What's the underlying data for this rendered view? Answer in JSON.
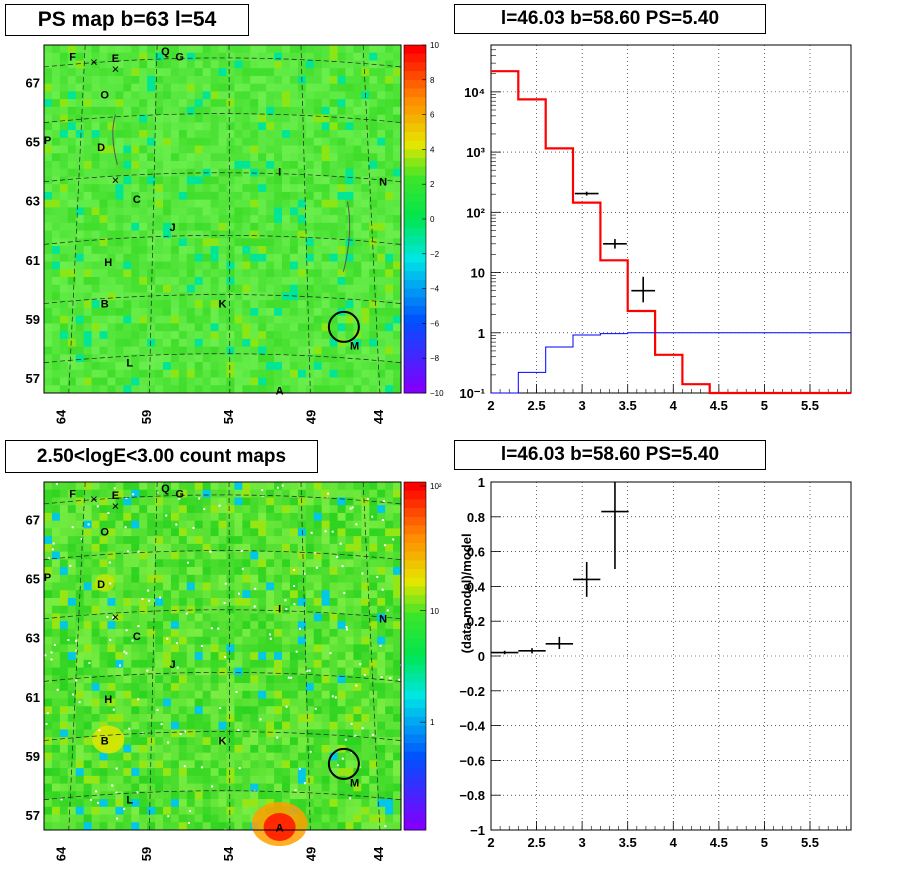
{
  "titles": {
    "map_top": "PS map b=63 l=54",
    "spec_top": "l=46.03 b=58.60 PS=5.40",
    "map_bottom": "2.50<logE<3.00 count maps",
    "spec_bottom": "l=46.03 b=58.60 PS=5.40"
  },
  "maps": {
    "x_ticks": [
      "64",
      "59",
      "54",
      "49",
      "44"
    ],
    "y_ticks": [
      "67",
      "65",
      "63",
      "61",
      "59",
      "57"
    ],
    "source_labels": [
      "F",
      "E",
      "Q",
      "G",
      "O",
      "P",
      "D",
      "I",
      "N",
      "C",
      "J",
      "H",
      "B",
      "K",
      "L",
      "M",
      "A"
    ],
    "top_palette_ticks": [
      "10",
      "8",
      "6",
      "4",
      "2",
      "0",
      "−2",
      "−4",
      "−6",
      "−8",
      "−10"
    ],
    "bottom_palette_ticks": [
      "10²",
      "10",
      "1"
    ],
    "colors": {
      "background": "#33e633",
      "circle": "#000000"
    }
  },
  "chart_data": [
    {
      "type": "line",
      "title": "l=46.03 b=58.60 PS=5.40",
      "log_y": true,
      "xlim": [
        2.0,
        5.95
      ],
      "ylim": [
        0.1,
        60000
      ],
      "x_ticks": [
        "2",
        "2.5",
        "3",
        "3.5",
        "4",
        "4.5",
        "5",
        "5.5"
      ],
      "y_ticks": [
        "10⁻¹",
        "1",
        "10",
        "10²",
        "10³",
        "10⁴"
      ],
      "grid": true,
      "series": [
        {
          "kind": "step",
          "color": "#ff0000",
          "edges": [
            2.0,
            2.3,
            2.6,
            2.9,
            3.2,
            3.5,
            3.8,
            4.1,
            4.4,
            5.95
          ],
          "values": [
            22000,
            7500,
            1150,
            145,
            16,
            2.3,
            0.43,
            0.14,
            0.09
          ]
        },
        {
          "kind": "step",
          "color": "#0000ff",
          "edges": [
            2.0,
            2.3,
            2.6,
            2.9,
            3.2,
            3.5,
            5.95
          ],
          "values": [
            0.09,
            0.22,
            0.58,
            0.92,
            0.97,
            1.0
          ]
        },
        {
          "kind": "errorbar",
          "color": "#000000",
          "points": [
            {
              "x": 3.05,
              "xerr": 0.13,
              "y": 205,
              "ylo": 190,
              "yhi": 220
            },
            {
              "x": 3.36,
              "xerr": 0.13,
              "y": 30,
              "ylo": 25,
              "yhi": 36
            },
            {
              "x": 3.67,
              "xerr": 0.13,
              "y": 5.0,
              "ylo": 3.2,
              "yhi": 8.5
            }
          ]
        }
      ]
    },
    {
      "type": "scatter",
      "title": "l=46.03 b=58.60 PS=5.40",
      "ylabel": "(data-model)/model",
      "xlim": [
        2.0,
        5.95
      ],
      "ylim": [
        -1,
        1
      ],
      "x_ticks": [
        "2",
        "2.5",
        "3",
        "3.5",
        "4",
        "4.5",
        "5",
        "5.5"
      ],
      "y_ticks": [
        "−1",
        "−0.8",
        "−0.6",
        "−0.4",
        "−0.2",
        "0",
        "0.2",
        "0.4",
        "0.6",
        "0.8",
        "1"
      ],
      "grid": true,
      "series": [
        {
          "kind": "errorbar",
          "color": "#000000",
          "points": [
            {
              "x": 2.15,
              "xerr": 0.15,
              "y": 0.02,
              "ylo": 0.01,
              "yhi": 0.03
            },
            {
              "x": 2.45,
              "xerr": 0.15,
              "y": 0.03,
              "ylo": 0.015,
              "yhi": 0.045
            },
            {
              "x": 2.75,
              "xerr": 0.15,
              "y": 0.07,
              "ylo": 0.04,
              "yhi": 0.11
            },
            {
              "x": 3.05,
              "xerr": 0.15,
              "y": 0.44,
              "ylo": 0.34,
              "yhi": 0.54
            },
            {
              "x": 3.36,
              "xerr": 0.15,
              "y": 0.83,
              "ylo": 0.5,
              "yhi": 1.0
            }
          ]
        }
      ]
    }
  ]
}
